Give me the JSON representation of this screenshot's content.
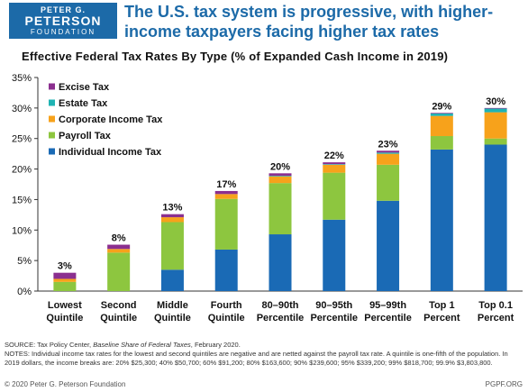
{
  "logo": {
    "line1": "PETER G.",
    "line2": "PETERSON",
    "line3": "FOUNDATION"
  },
  "headline": "The U.S. tax system is progressive, with higher-income taxpayers facing higher tax rates",
  "chart_data": {
    "type": "bar",
    "stacked": true,
    "title": "Effective Federal Tax Rates By Type (% of Expanded Cash Income in 2019)",
    "categories": [
      [
        "Lowest",
        "Quintile"
      ],
      [
        "Second",
        "Quintile"
      ],
      [
        "Middle",
        "Quintile"
      ],
      [
        "Fourth",
        "Quintile"
      ],
      [
        "80–90th",
        "Percentile"
      ],
      [
        "90–95th",
        "Percentile"
      ],
      [
        "95–99th",
        "Percentile"
      ],
      [
        "Top 1",
        "Percent"
      ],
      [
        "Top 0.1",
        "Percent"
      ]
    ],
    "series": [
      {
        "name": "Individual Income Tax",
        "color": "#1a6ab5",
        "values": [
          0,
          0,
          3.5,
          6.8,
          9.3,
          11.7,
          14.8,
          23.2,
          24.0
        ]
      },
      {
        "name": "Payroll Tax",
        "color": "#8dc63f",
        "values": [
          1.5,
          6.3,
          7.8,
          8.3,
          8.4,
          7.7,
          5.9,
          2.2,
          1.0
        ]
      },
      {
        "name": "Corporate Income Tax",
        "color": "#f7a21b",
        "values": [
          0.5,
          0.6,
          0.8,
          0.8,
          1.1,
          1.3,
          1.8,
          3.3,
          4.3
        ]
      },
      {
        "name": "Estate Tax",
        "color": "#1fb3b3",
        "values": [
          0,
          0,
          0,
          0,
          0.1,
          0.1,
          0.2,
          0.4,
          0.6
        ]
      },
      {
        "name": "Excise Tax",
        "color": "#8b2f8f",
        "values": [
          1.0,
          0.7,
          0.5,
          0.5,
          0.4,
          0.3,
          0.3,
          0.1,
          0.1
        ]
      }
    ],
    "totals": [
      "3%",
      "8%",
      "13%",
      "17%",
      "20%",
      "22%",
      "23%",
      "29%",
      "30%"
    ],
    "yticks": [
      "0%",
      "5%",
      "10%",
      "15%",
      "20%",
      "25%",
      "30%",
      "35%"
    ],
    "ylim": [
      0,
      35
    ],
    "legend_order": [
      "Excise Tax",
      "Estate Tax",
      "Corporate Income Tax",
      "Payroll Tax",
      "Individual Income Tax"
    ],
    "legend_placement": "top-left",
    "grid": false
  },
  "notes": {
    "source_prefix": "SOURCE: Tax Policy Center, ",
    "source_title": "Baseline Share of Federal Taxes",
    "source_suffix": ", February 2020.",
    "notes_text": "NOTES: Individual income tax rates for the lowest and second quintiles are negative and are netted against the payroll tax rate. A quintile is one-fifth of the population. In 2019 dollars, the income breaks are: 20% $25,300; 40% $50,700; 60% $91,200; 80% $163,600; 90% $239,600; 95% $339,200; 99% $818,700; 99.9% $3,803,800."
  },
  "footer": {
    "copyright": "© 2020 Peter G. Peterson Foundation",
    "site": "PGPF.ORG"
  }
}
